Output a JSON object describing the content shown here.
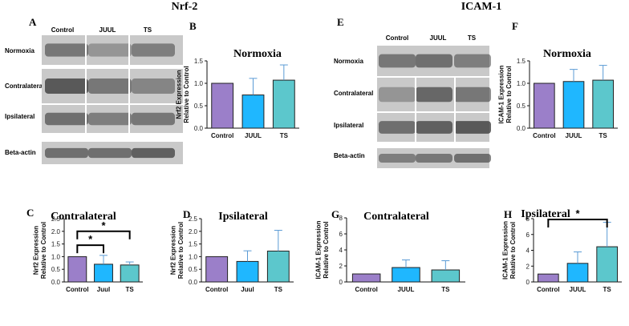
{
  "figure": {
    "sections": [
      {
        "title": "Nrf-2"
      },
      {
        "title": "ICAM-1"
      }
    ],
    "blots": [
      {
        "letter": "A",
        "lanes": [
          "Control",
          "JUUL",
          "TS"
        ],
        "rows": [
          "Normoxia",
          "Contralateral",
          "Ipsilateral",
          "Beta-actin"
        ]
      },
      {
        "letter": "E",
        "lanes": [
          "Control",
          "JUUL",
          "TS"
        ],
        "rows": [
          "Normoxia",
          "Contralateral",
          "Ipsilateral",
          "Beta-actin"
        ]
      }
    ],
    "colors": {
      "control": "#9B7FC9",
      "juul": "#1FB7FF",
      "ts": "#5CC7CC",
      "error_bar": "#5B9BD5"
    }
  },
  "chart_data": [
    {
      "letter": "B",
      "type": "bar",
      "title": "Normoxia",
      "ylabel": "Nrf2 Expression Relative to Control",
      "categories": [
        "Control",
        "JUUL",
        "TS"
      ],
      "values": [
        1.0,
        0.74,
        1.07
      ],
      "errors": [
        0,
        0.37,
        0.34
      ],
      "ylim": [
        0,
        1.5
      ],
      "yticks": [
        "0.0",
        "0.5",
        "1.0",
        "1.5"
      ],
      "significance": []
    },
    {
      "letter": "C",
      "type": "bar",
      "title": "Contralateral",
      "ylabel": "Nrf2 Expression Relative to Control",
      "categories": [
        "Control",
        "Juul",
        "TS"
      ],
      "values": [
        1.0,
        0.7,
        0.67
      ],
      "errors": [
        0,
        0.35,
        0.12
      ],
      "ylim": [
        0,
        2.5
      ],
      "yticks": [
        "0.0",
        "0.5",
        "1.0",
        "1.5",
        "2.0",
        "2.5"
      ],
      "significance": [
        {
          "from": 0,
          "to": 1,
          "label": "*",
          "y": 1.45
        },
        {
          "from": 0,
          "to": 2,
          "label": "*",
          "y": 2.0
        }
      ]
    },
    {
      "letter": "D",
      "type": "bar",
      "title": "Ipsilateral",
      "ylabel": "Nrf2 Expression Relative to Control",
      "categories": [
        "Control",
        "Juul",
        "TS"
      ],
      "values": [
        1.0,
        0.81,
        1.22
      ],
      "errors": [
        0,
        0.42,
        0.82
      ],
      "ylim": [
        0,
        2.5
      ],
      "yticks": [
        "0.0",
        "0.5",
        "1.0",
        "1.5",
        "2.0",
        "2.5"
      ],
      "significance": []
    },
    {
      "letter": "F",
      "type": "bar",
      "title": "Normoxia",
      "ylabel": "ICAM-1 Expression Relative to Control",
      "categories": [
        "Control",
        "JUUL",
        "TS"
      ],
      "values": [
        1.0,
        1.04,
        1.07
      ],
      "errors": [
        0,
        0.27,
        0.33
      ],
      "ylim": [
        0,
        1.5
      ],
      "yticks": [
        "0.0",
        "0.5",
        "1.0",
        "1.5"
      ],
      "significance": []
    },
    {
      "letter": "G",
      "type": "bar",
      "title": "Contralateral",
      "ylabel": "ICAM-1 Expression Relative to Control",
      "categories": [
        "Control",
        "JUUL",
        "TS"
      ],
      "values": [
        1.0,
        1.8,
        1.5
      ],
      "errors": [
        0,
        0.95,
        1.15
      ],
      "ylim": [
        0,
        8
      ],
      "yticks": [
        "0",
        "2",
        "4",
        "6",
        "8"
      ],
      "significance": []
    },
    {
      "letter": "H",
      "type": "bar",
      "title": "Ipsilateral",
      "ylabel": "ICAM-1 Expression Relative to Control",
      "categories": [
        "Control",
        "JUUL",
        "TS"
      ],
      "values": [
        1.0,
        2.35,
        4.45
      ],
      "errors": [
        0,
        1.45,
        3.1
      ],
      "ylim": [
        0,
        8
      ],
      "yticks": [
        "0",
        "2",
        "4",
        "6",
        "8"
      ],
      "significance": [
        {
          "from": 0,
          "to": 2,
          "label": "*",
          "y": 7.9
        }
      ]
    }
  ]
}
